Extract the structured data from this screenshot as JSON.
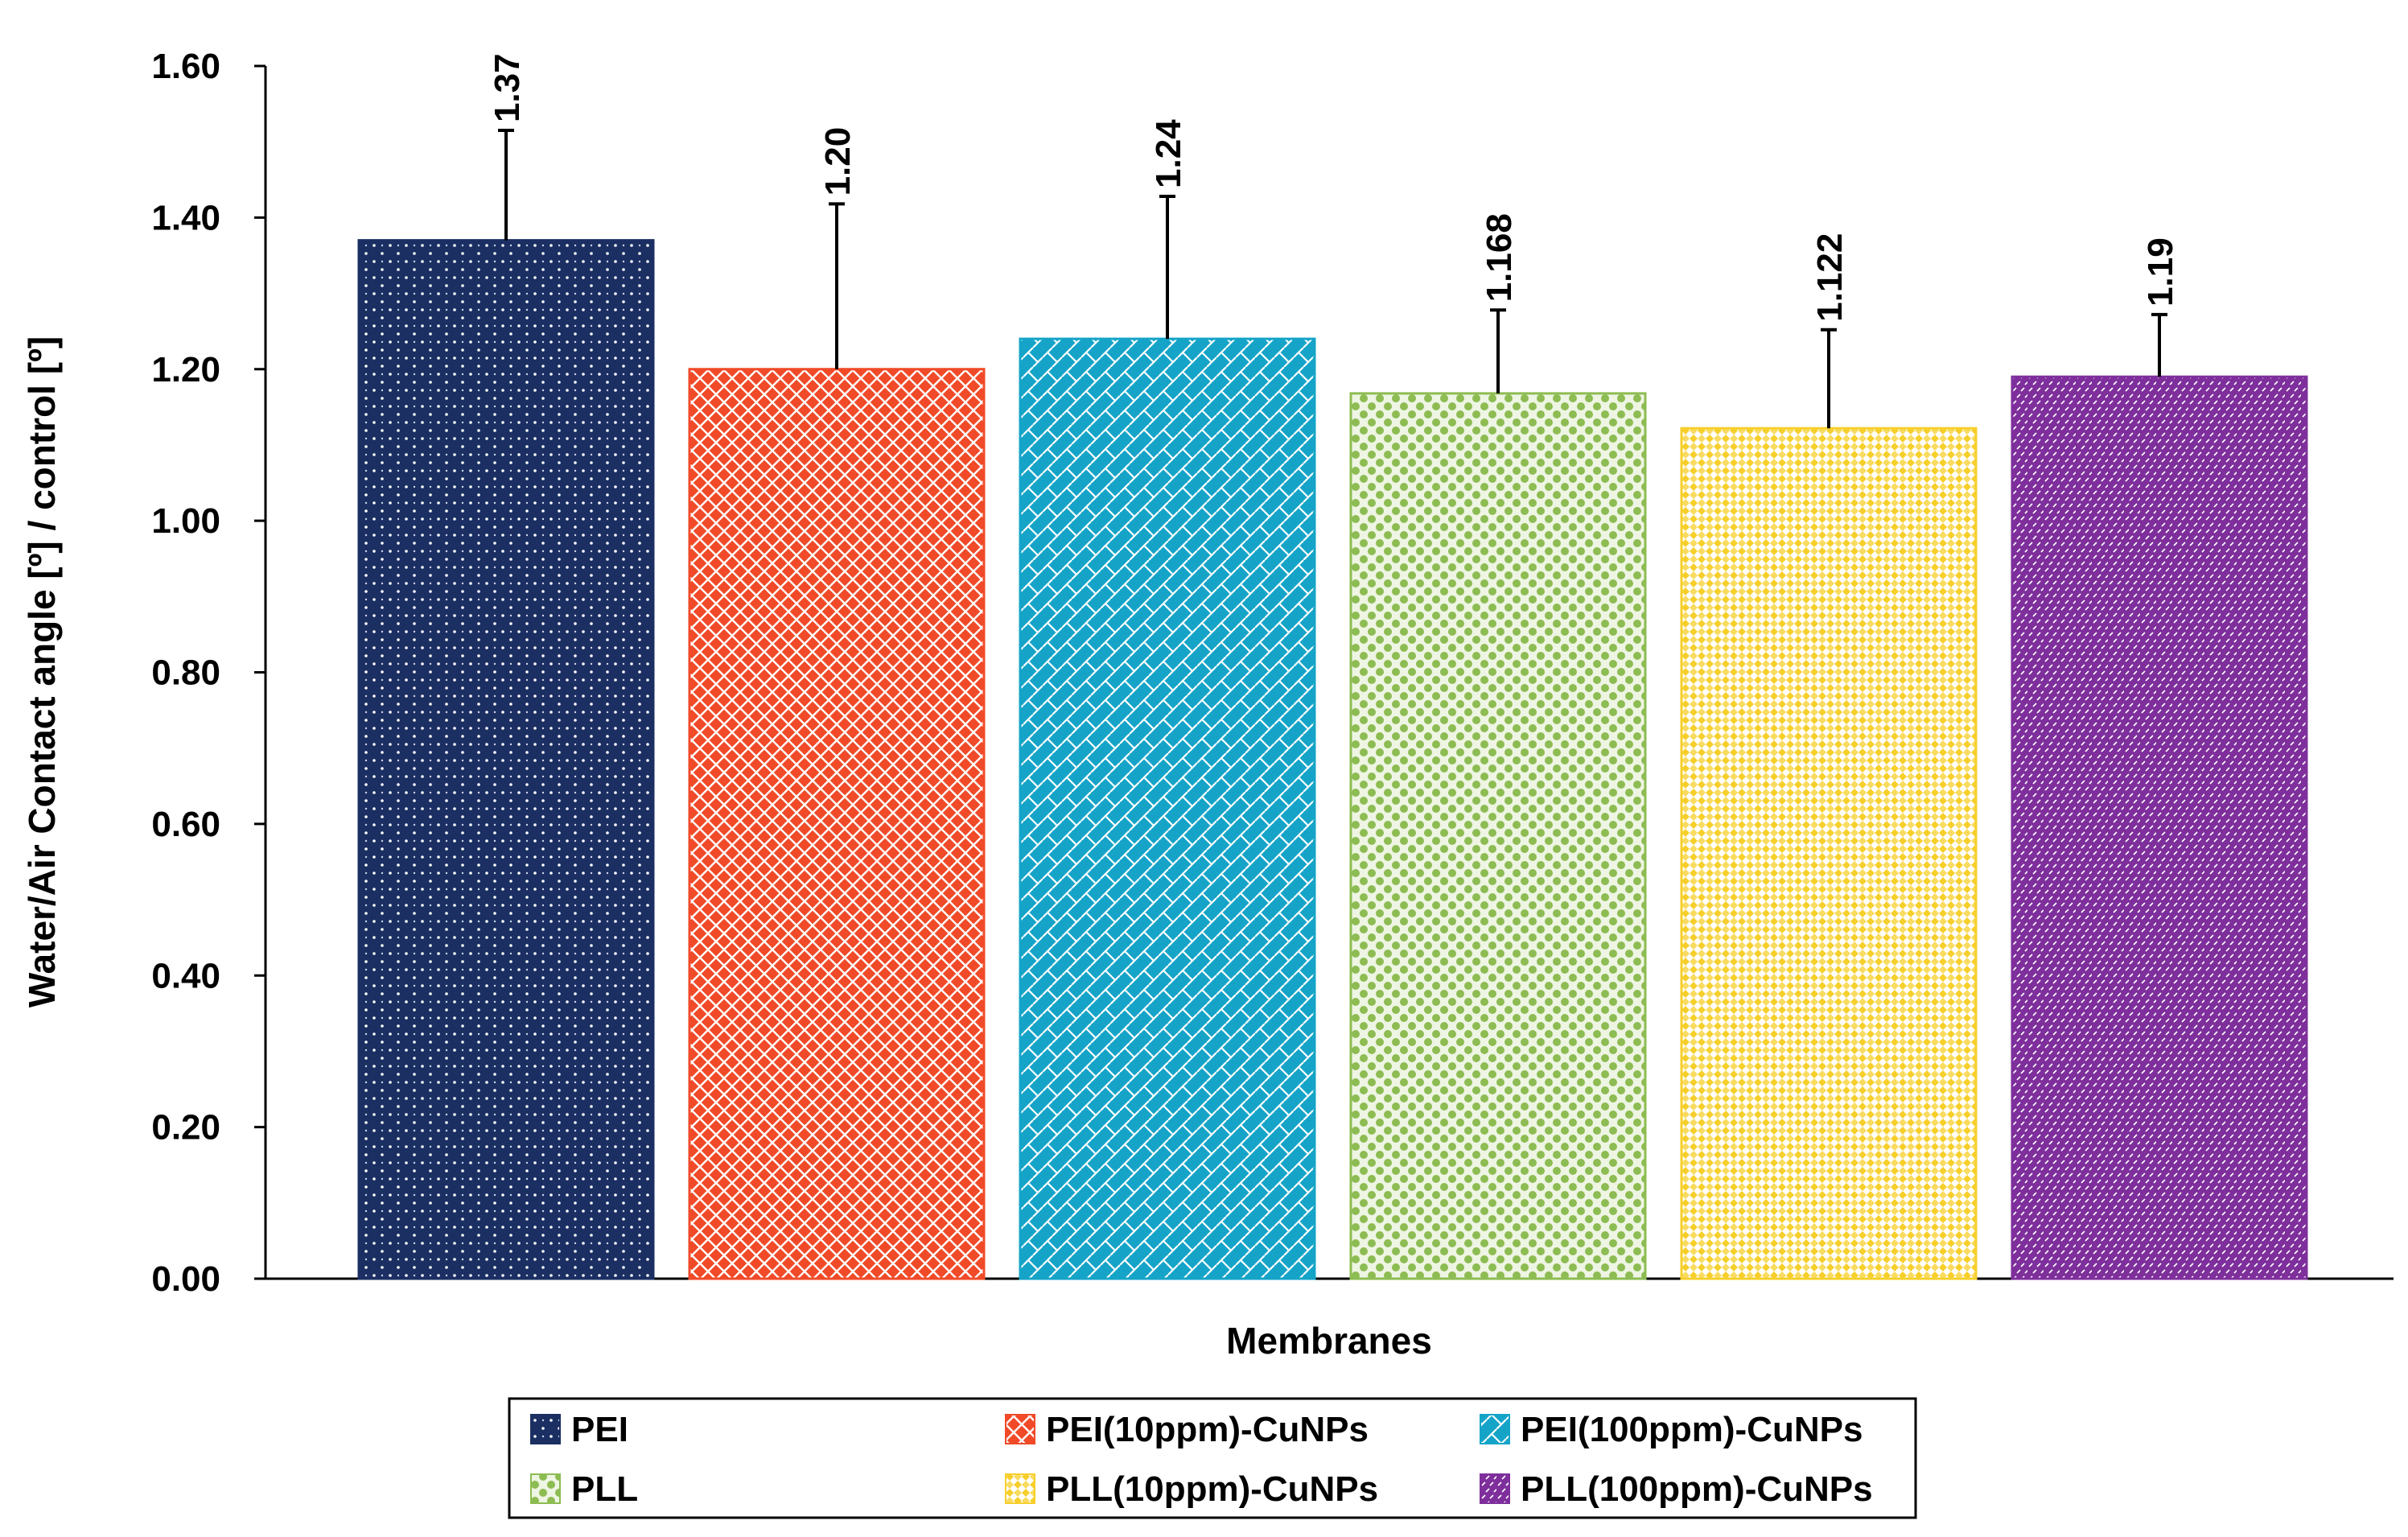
{
  "chart_data": {
    "type": "bar",
    "title": "",
    "xlabel": "Membranes",
    "ylabel": "Water/Air Contact angle [º] / control [º]",
    "ylim": [
      0,
      1.6
    ],
    "yticks": [
      "0.00",
      "0.20",
      "0.40",
      "0.60",
      "0.80",
      "1.00",
      "1.20",
      "1.40",
      "1.60"
    ],
    "grid": false,
    "legend_position": "bottom",
    "categories": [
      "PEI",
      "PEI(10ppm)-CuNPs",
      "PEI(100ppm)-CuNPs",
      "PLL",
      "PLL(10ppm)-CuNPs",
      "PLL(100ppm)-CuNPs"
    ],
    "values": [
      1.37,
      1.2,
      1.24,
      1.168,
      1.122,
      1.19
    ],
    "value_labels": [
      "1.37",
      "1.20",
      "1.24",
      "1.168",
      "1.122",
      "1.19"
    ],
    "error_upper": [
      1.515,
      1.418,
      1.428,
      1.278,
      1.252,
      1.272
    ],
    "colors": [
      "#1b2f63",
      "#f04a28",
      "#15a4c8",
      "#8dbc52",
      "#f7cf2b",
      "#7e2f9c"
    ],
    "legend_order": [
      0,
      1,
      2,
      3,
      4,
      5
    ]
  }
}
